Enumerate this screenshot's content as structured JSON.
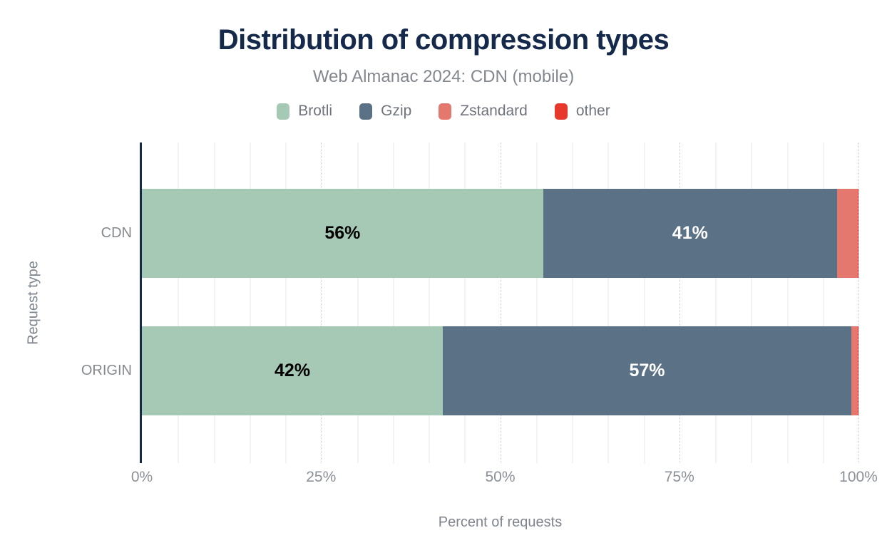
{
  "chart_data": {
    "type": "bar",
    "orientation": "horizontal",
    "stacked": true,
    "title": "Distribution of compression types",
    "subtitle": "Web Almanac 2024: CDN (mobile)",
    "xlabel": "Percent of requests",
    "ylabel": "Request type",
    "categories": [
      "CDN",
      "ORIGIN"
    ],
    "series": [
      {
        "name": "Brotli",
        "color": "#a5c9b5",
        "label_color": "#000000",
        "values": [
          56,
          42
        ],
        "labels": [
          "56%",
          "42%"
        ]
      },
      {
        "name": "Gzip",
        "color": "#5b7186",
        "label_color": "#ffffff",
        "values": [
          41,
          57
        ],
        "labels": [
          "41%",
          "57%"
        ]
      },
      {
        "name": "Zstandard",
        "color": "#e5786e",
        "label_color": "#000000",
        "values": [
          2.9,
          0.9
        ],
        "labels": [
          "",
          ""
        ]
      },
      {
        "name": "other",
        "color": "#e6392b",
        "label_color": "#ffffff",
        "values": [
          0.1,
          0.1
        ],
        "labels": [
          "",
          ""
        ]
      }
    ],
    "xlim": [
      0,
      100
    ],
    "x_ticks": [
      {
        "value": 0,
        "label": "0%"
      },
      {
        "value": 25,
        "label": "25%"
      },
      {
        "value": 50,
        "label": "50%"
      },
      {
        "value": 75,
        "label": "75%"
      },
      {
        "value": 100,
        "label": "100%"
      }
    ],
    "grid": {
      "minor_step": 5,
      "major_step": 25,
      "on": true
    },
    "legend_position": "top"
  },
  "colors": {
    "title": "#15294b",
    "subtitle": "#83878e",
    "axis": "#16294a",
    "tick_label": "#8b9199",
    "axis_label": "#7f858d",
    "category_label": "#85898f",
    "grid_minor": "#f2f3f5",
    "grid_major": "#c9cdd4",
    "background": "#ffffff"
  }
}
